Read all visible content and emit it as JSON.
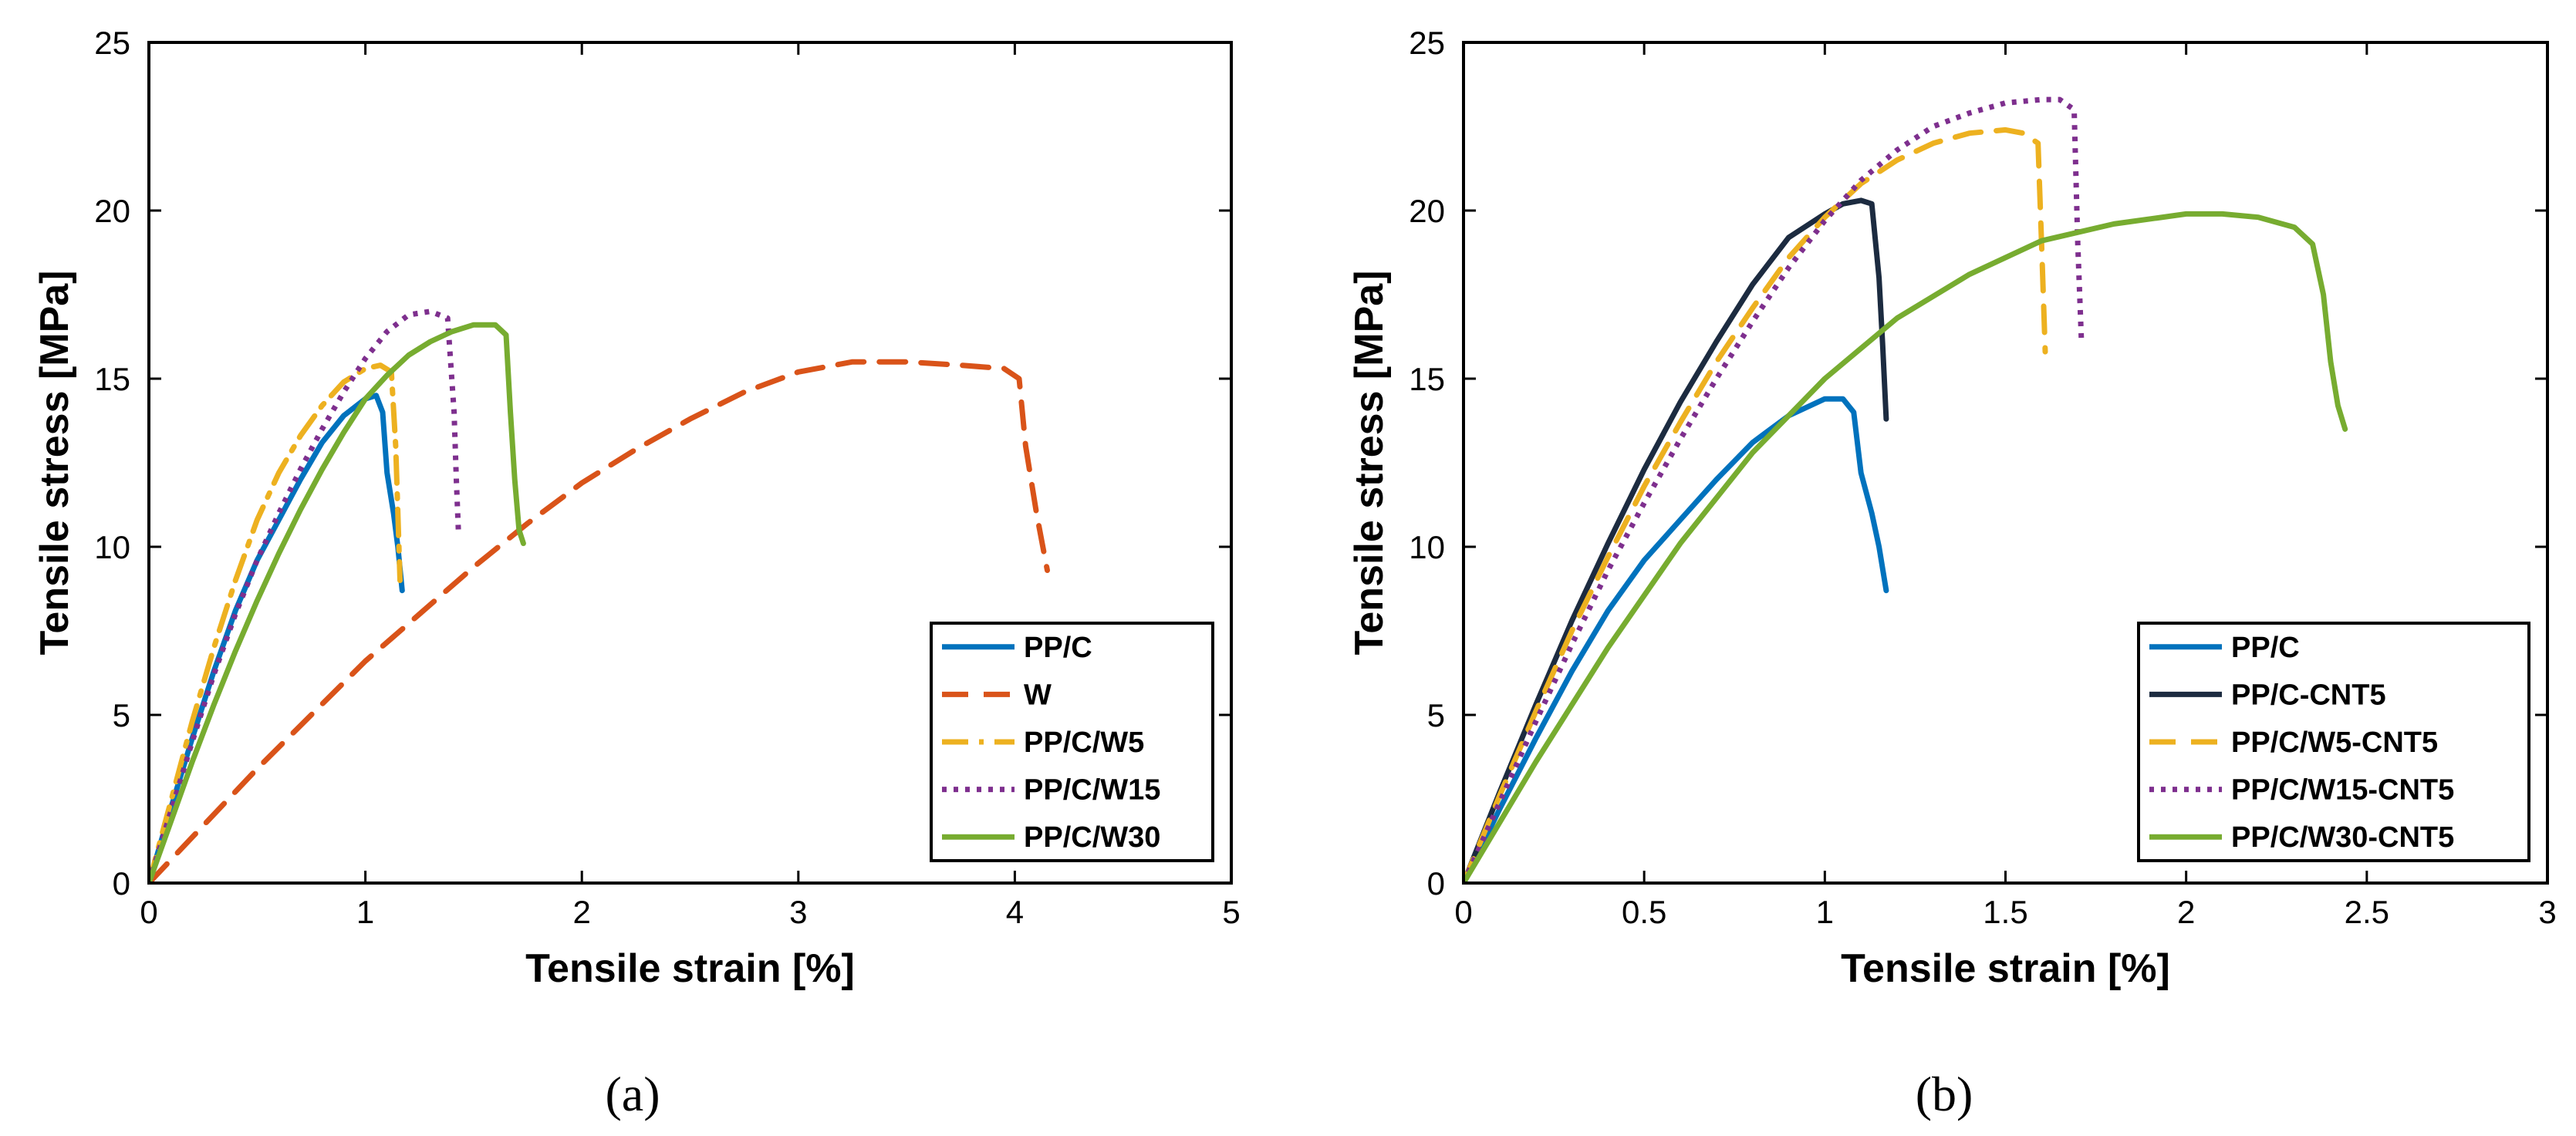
{
  "chart_data": [
    {
      "type": "line",
      "caption": "(a)",
      "xlabel": "Tensile strain [%]",
      "ylabel": "Tensile stress [MPa]",
      "xlim": [
        0,
        5
      ],
      "ylim": [
        0,
        25
      ],
      "xticks": [
        0,
        1,
        2,
        3,
        4,
        5
      ],
      "xtick_labels": [
        "0",
        "1",
        "2",
        "3",
        "4",
        "5"
      ],
      "yticks": [
        0,
        5,
        10,
        15,
        20,
        25
      ],
      "ytick_labels": [
        "0",
        "5",
        "10",
        "15",
        "20",
        "25"
      ],
      "legend_position": "bottom-right",
      "series": [
        {
          "name": "PP/C",
          "color": "#0072BD",
          "dash": "solid",
          "x": [
            0,
            0.1,
            0.2,
            0.3,
            0.4,
            0.5,
            0.6,
            0.7,
            0.8,
            0.9,
            1.0,
            1.05,
            1.08,
            1.1,
            1.13,
            1.15,
            1.17
          ],
          "y": [
            0,
            2.2,
            4.3,
            6.3,
            8.1,
            9.6,
            10.8,
            12.0,
            13.1,
            13.9,
            14.4,
            14.5,
            14.0,
            12.2,
            11.0,
            10.0,
            8.7
          ]
        },
        {
          "name": "W",
          "color": "#D95319",
          "dash": "dashed",
          "x": [
            0,
            0.25,
            0.5,
            0.75,
            1.0,
            1.25,
            1.5,
            1.75,
            2.0,
            2.25,
            2.5,
            2.75,
            3.0,
            3.25,
            3.5,
            3.75,
            3.95,
            4.02,
            4.05,
            4.1,
            4.15
          ],
          "y": [
            0,
            1.7,
            3.4,
            5.0,
            6.6,
            8.0,
            9.4,
            10.7,
            11.9,
            12.9,
            13.8,
            14.6,
            15.2,
            15.5,
            15.5,
            15.4,
            15.3,
            15.0,
            13.0,
            11.0,
            9.3
          ]
        },
        {
          "name": "PP/C/W5",
          "color": "#EDB120",
          "dash": "dashdot",
          "x": [
            0,
            0.1,
            0.2,
            0.3,
            0.4,
            0.5,
            0.6,
            0.7,
            0.8,
            0.9,
            1.0,
            1.07,
            1.12,
            1.14,
            1.15,
            1.16
          ],
          "y": [
            0,
            2.4,
            4.8,
            7.0,
            9.0,
            10.8,
            12.2,
            13.3,
            14.2,
            14.9,
            15.3,
            15.4,
            15.2,
            13.0,
            11.0,
            9.0
          ]
        },
        {
          "name": "PP/C/W15",
          "color": "#7E2F8E",
          "dash": "dotted",
          "x": [
            0,
            0.1,
            0.2,
            0.3,
            0.4,
            0.5,
            0.6,
            0.7,
            0.8,
            0.9,
            1.0,
            1.1,
            1.2,
            1.3,
            1.38,
            1.41,
            1.42,
            1.43
          ],
          "y": [
            0,
            2.1,
            4.2,
            6.2,
            8.0,
            9.6,
            11.0,
            12.3,
            13.5,
            14.6,
            15.6,
            16.4,
            16.9,
            17.0,
            16.8,
            14.0,
            12.0,
            10.4
          ]
        },
        {
          "name": "PP/C/W30",
          "color": "#77AC30",
          "dash": "solid",
          "x": [
            0,
            0.1,
            0.2,
            0.3,
            0.4,
            0.5,
            0.6,
            0.7,
            0.8,
            0.9,
            1.0,
            1.1,
            1.2,
            1.3,
            1.4,
            1.5,
            1.6,
            1.65,
            1.67,
            1.69,
            1.71,
            1.73
          ],
          "y": [
            0,
            1.8,
            3.6,
            5.3,
            6.9,
            8.4,
            9.8,
            11.1,
            12.3,
            13.4,
            14.4,
            15.1,
            15.7,
            16.1,
            16.4,
            16.6,
            16.6,
            16.3,
            14.0,
            12.0,
            10.5,
            10.1
          ]
        }
      ]
    },
    {
      "type": "line",
      "caption": "(b)",
      "xlabel": "Tensile strain [%]",
      "ylabel": "Tensile stress [MPa]",
      "xlim": [
        0,
        3
      ],
      "ylim": [
        0,
        25
      ],
      "xticks": [
        0,
        0.5,
        1,
        1.5,
        2,
        2.5,
        3
      ],
      "xtick_labels": [
        "0",
        "0.5",
        "1",
        "1.5",
        "2",
        "2.5",
        "3"
      ],
      "yticks": [
        0,
        5,
        10,
        15,
        20,
        25
      ],
      "ytick_labels": [
        "0",
        "5",
        "10",
        "15",
        "20",
        "25"
      ],
      "legend_position": "bottom-right",
      "series": [
        {
          "name": "PP/C",
          "color": "#0072BD",
          "dash": "solid",
          "x": [
            0,
            0.1,
            0.2,
            0.3,
            0.4,
            0.5,
            0.6,
            0.7,
            0.8,
            0.9,
            1.0,
            1.05,
            1.08,
            1.1,
            1.13,
            1.15,
            1.17
          ],
          "y": [
            0,
            2.2,
            4.3,
            6.3,
            8.1,
            9.6,
            10.8,
            12.0,
            13.1,
            13.9,
            14.4,
            14.4,
            14.0,
            12.2,
            11.0,
            10.0,
            8.7
          ]
        },
        {
          "name": "PP/C-CNT5",
          "color": "#1C2B40",
          "dash": "solid",
          "x": [
            0,
            0.1,
            0.2,
            0.3,
            0.4,
            0.5,
            0.6,
            0.7,
            0.8,
            0.9,
            1.0,
            1.05,
            1.1,
            1.13,
            1.15,
            1.16,
            1.17
          ],
          "y": [
            0,
            2.7,
            5.3,
            7.8,
            10.1,
            12.3,
            14.3,
            16.1,
            17.8,
            19.2,
            19.9,
            20.2,
            20.3,
            20.2,
            18.0,
            16.0,
            13.8
          ]
        },
        {
          "name": "PP/C/W5-CNT5",
          "color": "#EDB120",
          "dash": "dashed",
          "x": [
            0,
            0.1,
            0.2,
            0.3,
            0.4,
            0.5,
            0.6,
            0.7,
            0.8,
            0.9,
            1.0,
            1.1,
            1.2,
            1.3,
            1.4,
            1.5,
            1.55,
            1.59,
            1.6,
            1.61
          ],
          "y": [
            0,
            2.6,
            5.1,
            7.5,
            9.7,
            11.8,
            13.7,
            15.5,
            17.1,
            18.6,
            19.8,
            20.8,
            21.5,
            22.0,
            22.3,
            22.4,
            22.3,
            22.0,
            19.0,
            15.8
          ]
        },
        {
          "name": "PP/C/W15-CNT5",
          "color": "#7E2F8E",
          "dash": "dotted",
          "x": [
            0,
            0.1,
            0.2,
            0.3,
            0.4,
            0.5,
            0.6,
            0.7,
            0.8,
            0.9,
            1.0,
            1.1,
            1.2,
            1.3,
            1.4,
            1.5,
            1.6,
            1.65,
            1.69,
            1.7,
            1.71
          ],
          "y": [
            0,
            2.4,
            4.8,
            7.1,
            9.3,
            11.3,
            13.2,
            15.0,
            16.7,
            18.3,
            19.7,
            20.9,
            21.8,
            22.5,
            22.9,
            23.2,
            23.3,
            23.3,
            23.0,
            19.0,
            16.2
          ]
        },
        {
          "name": "PP/C/W30-CNT5",
          "color": "#77AC30",
          "dash": "solid",
          "x": [
            0,
            0.2,
            0.4,
            0.6,
            0.8,
            1.0,
            1.2,
            1.4,
            1.6,
            1.8,
            2.0,
            2.1,
            2.2,
            2.3,
            2.35,
            2.38,
            2.4,
            2.42,
            2.44
          ],
          "y": [
            0,
            3.6,
            7.0,
            10.1,
            12.8,
            15.0,
            16.8,
            18.1,
            19.1,
            19.6,
            19.9,
            19.9,
            19.8,
            19.5,
            19.0,
            17.5,
            15.5,
            14.2,
            13.5
          ]
        }
      ]
    }
  ]
}
